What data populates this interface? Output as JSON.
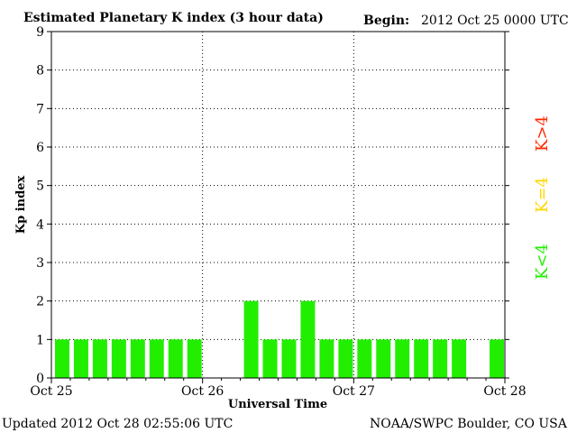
{
  "header": {
    "title": "Estimated Planetary K index (3 hour data)",
    "begin_label": "Begin:",
    "begin_value": "2012 Oct 25 0000 UTC"
  },
  "footer": {
    "updated": "Updated 2012 Oct 28 02:55:06 UTC",
    "source": "NOAA/SWPC Boulder, CO USA"
  },
  "legend": [
    {
      "label": "K>4",
      "color": "#ff2a00"
    },
    {
      "label": "K=4",
      "color": "#ffd700"
    },
    {
      "label": "K<4",
      "color": "#22ee00"
    }
  ],
  "chart_data": {
    "type": "bar",
    "title": "Estimated Planetary K index (3 hour data)",
    "xlabel": "Universal Time",
    "ylabel": "Kp index",
    "ylim": [
      0,
      9
    ],
    "yticks": [
      0,
      1,
      2,
      3,
      4,
      5,
      6,
      7,
      8,
      9
    ],
    "x_tick_labels": [
      "Oct 25",
      "Oct 26",
      "Oct 27",
      "Oct 28"
    ],
    "interval_hours": 3,
    "grid": "dotted at day boundaries and integer Kp levels",
    "bar_color": "#22ee00",
    "values": [
      1,
      1,
      1,
      1,
      1,
      1,
      1,
      1,
      null,
      null,
      2,
      1,
      1,
      2,
      1,
      1,
      1,
      1,
      1,
      1,
      1,
      1,
      null,
      1
    ]
  }
}
